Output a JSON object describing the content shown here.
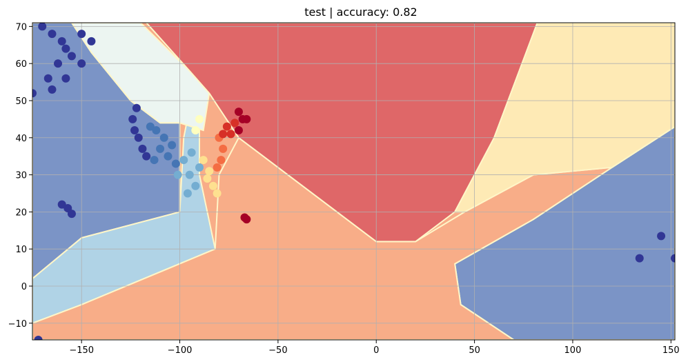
{
  "chart_data": {
    "type": "scatter",
    "title": "test | accuracy: 0.82",
    "xlabel": "",
    "ylabel": "",
    "xlim": [
      -175,
      152
    ],
    "ylim": [
      -14.5,
      71
    ],
    "xticks": [
      -150,
      -100,
      -50,
      0,
      50,
      100,
      150
    ],
    "yticks": [
      -10,
      0,
      10,
      20,
      30,
      40,
      50,
      60,
      70
    ],
    "grid": true,
    "colors": {
      "c0": "#313695",
      "c1": "#4575b4",
      "c2": "#74add1",
      "c3": "#abd9e9",
      "c4": "#e0f3f8",
      "c5": "#ffffbf",
      "c6": "#fee090",
      "c7": "#fdae61",
      "c8": "#f46d43",
      "c9": "#d73027",
      "c10": "#a50026"
    },
    "regions": [
      {
        "class": "c0",
        "color": "#7b94c6",
        "points": [
          [
            -175,
            71
          ],
          [
            -155,
            71
          ],
          [
            -145,
            63
          ],
          [
            -125,
            50
          ],
          [
            -110,
            44
          ],
          [
            -100,
            44
          ],
          [
            -100,
            20
          ],
          [
            -150,
            13
          ],
          [
            -175,
            2
          ]
        ]
      },
      {
        "class": "c0",
        "color": "#7b94c6",
        "points": [
          [
            152,
            43
          ],
          [
            120,
            32
          ],
          [
            80,
            18
          ],
          [
            40,
            6
          ],
          [
            43,
            -5
          ],
          [
            70,
            -14.5
          ],
          [
            152,
            -14.5
          ]
        ]
      },
      {
        "class": "c3",
        "color": "#b0d3e6",
        "points": [
          [
            -175,
            2
          ],
          [
            -150,
            13
          ],
          [
            -100,
            20
          ],
          [
            -98,
            40
          ],
          [
            -95,
            48
          ],
          [
            -90,
            45
          ],
          [
            -90,
            30
          ],
          [
            -82,
            10
          ],
          [
            -150,
            -5
          ],
          [
            -175,
            -10
          ]
        ]
      },
      {
        "class": "c4",
        "color": "#ecf5f1",
        "points": [
          [
            -155,
            71
          ],
          [
            -120,
            71
          ],
          [
            -95,
            58
          ],
          [
            -85,
            52
          ],
          [
            -88,
            42
          ],
          [
            -100,
            44
          ],
          [
            -110,
            44
          ],
          [
            -125,
            50
          ],
          [
            -145,
            63
          ]
        ]
      },
      {
        "class": "c7",
        "color": "#f8ad88",
        "points": [
          [
            -175,
            -10
          ],
          [
            -150,
            -5
          ],
          [
            -82,
            10
          ],
          [
            -80,
            30
          ],
          [
            -70,
            40
          ],
          [
            0,
            12
          ],
          [
            20,
            12
          ],
          [
            45,
            20
          ],
          [
            80,
            30
          ],
          [
            120,
            32
          ],
          [
            152,
            43
          ],
          [
            120,
            32
          ],
          [
            80,
            18
          ],
          [
            40,
            6
          ],
          [
            43,
            -5
          ],
          [
            70,
            -14.5
          ],
          [
            -175,
            -14.5
          ]
        ]
      },
      {
        "class": "c9",
        "color": "#df6768",
        "points": [
          [
            -117,
            71
          ],
          [
            82,
            71
          ],
          [
            60,
            40
          ],
          [
            40,
            20
          ],
          [
            20,
            12
          ],
          [
            0,
            12
          ],
          [
            -70,
            40
          ],
          [
            -85,
            52
          ],
          [
            -95,
            58
          ]
        ]
      },
      {
        "class": "c6",
        "color": "#feeab5",
        "points": [
          [
            82,
            71
          ],
          [
            152,
            71
          ],
          [
            152,
            43
          ],
          [
            120,
            32
          ],
          [
            80,
            30
          ],
          [
            45,
            20
          ],
          [
            40,
            20
          ],
          [
            60,
            40
          ]
        ]
      }
    ],
    "series": [
      {
        "class": "c0",
        "color": "#313695",
        "points": [
          [
            -170,
            70
          ],
          [
            -165,
            68
          ],
          [
            -160,
            66
          ],
          [
            -158,
            64
          ],
          [
            -155,
            62
          ],
          [
            -150,
            68
          ],
          [
            -145,
            66
          ],
          [
            -162,
            60
          ],
          [
            -150,
            60
          ],
          [
            -167,
            56
          ],
          [
            -165,
            53
          ],
          [
            -175,
            52
          ],
          [
            -158,
            56
          ],
          [
            -160,
            22
          ],
          [
            -157,
            21
          ],
          [
            -155,
            19.5
          ],
          [
            -122,
            48
          ],
          [
            -124,
            45
          ],
          [
            -123,
            42
          ],
          [
            -121,
            40
          ],
          [
            -119,
            37
          ],
          [
            -117,
            35
          ],
          [
            134,
            7.5
          ],
          [
            145,
            13.5
          ],
          [
            152,
            7.5
          ],
          [
            -172,
            -14.5
          ]
        ]
      },
      {
        "class": "c1",
        "color": "#4575b4",
        "points": [
          [
            -115,
            43
          ],
          [
            -112,
            42
          ],
          [
            -108,
            40
          ],
          [
            -110,
            37
          ],
          [
            -106,
            35
          ],
          [
            -104,
            38
          ],
          [
            -102,
            33
          ],
          [
            -113,
            34
          ]
        ]
      },
      {
        "class": "c2",
        "color": "#74add1",
        "points": [
          [
            -98,
            34
          ],
          [
            -95,
            30
          ],
          [
            -92,
            27
          ],
          [
            -96,
            25
          ],
          [
            -101,
            30
          ],
          [
            -94,
            36
          ],
          [
            -90,
            32
          ]
        ]
      },
      {
        "class": "c5",
        "color": "#ffffbf",
        "points": [
          [
            -90,
            45
          ],
          [
            -92,
            42
          ]
        ]
      },
      {
        "class": "c6",
        "color": "#fee090",
        "points": [
          [
            -88,
            34
          ],
          [
            -85,
            31
          ],
          [
            -83,
            27
          ],
          [
            -81,
            25
          ],
          [
            -86,
            29
          ]
        ]
      },
      {
        "class": "c8",
        "color": "#f46d43",
        "points": [
          [
            -80,
            40
          ],
          [
            -78,
            37
          ],
          [
            -79,
            34
          ],
          [
            -81,
            32
          ]
        ]
      },
      {
        "class": "c9",
        "color": "#d73027",
        "points": [
          [
            -76,
            43
          ],
          [
            -72,
            44
          ],
          [
            -78,
            41
          ],
          [
            -74,
            41
          ]
        ]
      },
      {
        "class": "c10",
        "color": "#a50026",
        "points": [
          [
            -70,
            47
          ],
          [
            -68,
            45
          ],
          [
            -70,
            42
          ],
          [
            -66,
            45
          ],
          [
            -67,
            18.5
          ],
          [
            -66,
            18
          ]
        ]
      }
    ]
  }
}
